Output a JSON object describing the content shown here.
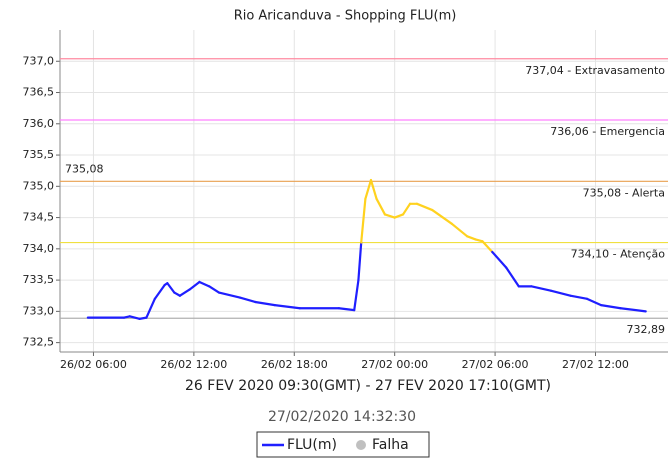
{
  "chart_data": {
    "type": "line",
    "title": "Rio Aricanduva - Shopping FLU(m)",
    "subtitle": "26 FEV 2020 09:30(GMT) - 27 FEV 2020 17:10(GMT)",
    "timestamp": "27/02/2020 14:32:30",
    "x": [
      "26/02 05:40",
      "26/02 07:50",
      "26/02 08:10",
      "26/02 08:45",
      "26/02 09:10",
      "26/02 09:40",
      "26/02 10:15",
      "26/02 10:25",
      "26/02 10:50",
      "26/02 11:10",
      "26/02 11:45",
      "26/02 12:20",
      "26/02 12:55",
      "26/02 13:30",
      "26/02 14:45",
      "26/02 15:40",
      "26/02 16:50",
      "26/02 18:20",
      "26/02 20:40",
      "26/02 21:35",
      "26/02 21:50",
      "26/02 22:00",
      "26/02 22:15",
      "26/02 22:35",
      "26/02 22:55",
      "26/02 23:25",
      "27/02 00:00",
      "27/02 00:30",
      "27/02 00:55",
      "27/02 01:20",
      "27/02 02:15",
      "27/02 03:25",
      "27/02 04:20",
      "27/02 04:50",
      "27/02 05:15",
      "27/02 05:50",
      "27/02 06:40",
      "27/02 07:25",
      "27/02 08:10",
      "27/02 09:20",
      "27/02 10:30",
      "27/02 11:30",
      "27/02 12:20",
      "27/02 13:30",
      "27/02 15:00"
    ],
    "series": [
      {
        "name": "FLU(m)",
        "color": "#1f1fff",
        "alert_color": "#ffd21f",
        "values": [
          732.9,
          732.9,
          732.92,
          732.88,
          732.9,
          733.2,
          733.42,
          733.45,
          733.3,
          733.25,
          733.35,
          733.47,
          733.4,
          733.3,
          733.22,
          733.15,
          733.1,
          733.05,
          733.05,
          733.02,
          733.5,
          734.1,
          734.8,
          735.1,
          734.8,
          734.55,
          734.5,
          734.55,
          734.72,
          734.72,
          734.62,
          734.4,
          734.2,
          734.15,
          734.12,
          733.95,
          733.7,
          733.4,
          733.4,
          733.33,
          733.25,
          733.2,
          733.1,
          733.05,
          733.0
        ]
      }
    ],
    "extra_legend": {
      "name": "Falha",
      "color": "#c0c0c0"
    },
    "thresholds": [
      {
        "value": 737.04,
        "label": "737,04 - Extravasamento",
        "color": "#ff8aa0"
      },
      {
        "value": 736.06,
        "label": "736,06 - Emergencia",
        "color": "#ff80ff"
      },
      {
        "value": 735.08,
        "label": "735,08 - Alerta",
        "color": "#e8a050"
      },
      {
        "value": 734.1,
        "label": "734,10 - Atenção",
        "color": "#f0e040"
      },
      {
        "value": 732.89,
        "label": "732,89",
        "color": "#b0b0b0"
      }
    ],
    "max_annotation": {
      "value": 735.08,
      "label": "735,08"
    },
    "xlim": [
      "26/02 04:00",
      "27/02 16:20"
    ],
    "xticks": [
      "26/02 06:00",
      "26/02 12:00",
      "26/02 18:00",
      "27/02 00:00",
      "27/02 06:00",
      "27/02 12:00"
    ],
    "ylim": [
      732.35,
      737.5
    ],
    "yticks": [
      {
        "value": 732.5,
        "label": "732,5"
      },
      {
        "value": 733,
        "label": "733,0"
      },
      {
        "value": 733.5,
        "label": "733,5"
      },
      {
        "value": 734,
        "label": "734,0"
      },
      {
        "value": 734.5,
        "label": "734,5"
      },
      {
        "value": 735,
        "label": "735,0"
      },
      {
        "value": 735.5,
        "label": "735,5"
      },
      {
        "value": 736,
        "label": "736,0"
      },
      {
        "value": 736.5,
        "label": "736,5"
      },
      {
        "value": 737,
        "label": "737,0"
      }
    ],
    "grid": true
  }
}
